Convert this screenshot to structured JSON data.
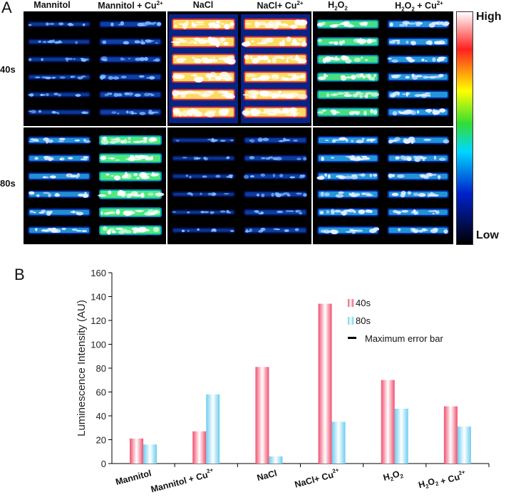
{
  "panel_a": {
    "letter": "A",
    "columns": [
      {
        "base": "Mannitol",
        "sub": "",
        "sup": ""
      },
      {
        "base": "Mannitol + Cu",
        "sub": "",
        "sup": "2+"
      },
      {
        "base": "NaCl",
        "sub": "",
        "sup": ""
      },
      {
        "base": "NaCl+ Cu",
        "sub": "",
        "sup": "2+"
      },
      {
        "base": "H",
        "sub": "2",
        "mid": "O",
        "sub2": "2",
        "sup": ""
      },
      {
        "base": "H",
        "sub": "2",
        "mid": "O",
        "sub2": "2",
        "tail": " + Cu",
        "sup": "2+"
      }
    ],
    "rows": [
      "40s",
      "80s"
    ],
    "colorbar": {
      "high": "High",
      "low": "Low",
      "stops": [
        "#ffffff",
        "#ff2020",
        "#ffff00",
        "#33dd33",
        "#00d8ff",
        "#0022cc",
        "#000000"
      ]
    },
    "intensity_levels": [
      [
        0.18,
        0.35,
        1.0,
        1.0,
        0.62,
        0.55
      ],
      [
        0.45,
        0.75,
        0.12,
        0.3,
        0.55,
        0.5
      ]
    ]
  },
  "panel_b": {
    "letter": "B"
  },
  "chart_data": {
    "type": "bar",
    "categories": [
      "Mannitol",
      "Mannitol + Cu2+",
      "NaCl",
      "NaCl+ Cu2+",
      "H2O2",
      "H2O2 + Cu2+"
    ],
    "series": [
      {
        "name": "40s",
        "values": [
          21,
          27,
          81,
          134,
          70,
          48
        ],
        "color": "#f0506e"
      },
      {
        "name": "80s",
        "values": [
          16,
          58,
          6,
          35,
          46,
          31
        ],
        "color": "#6ccdf0"
      }
    ],
    "legend_extra": "Maximum error bar",
    "ylabel": "Luminescence Intensity (AU)",
    "xlabel": "",
    "ylim": [
      0,
      160
    ],
    "yticks": [
      0,
      20,
      40,
      60,
      80,
      100,
      120,
      140,
      160
    ],
    "legend_position": "top-right",
    "grid": false
  }
}
